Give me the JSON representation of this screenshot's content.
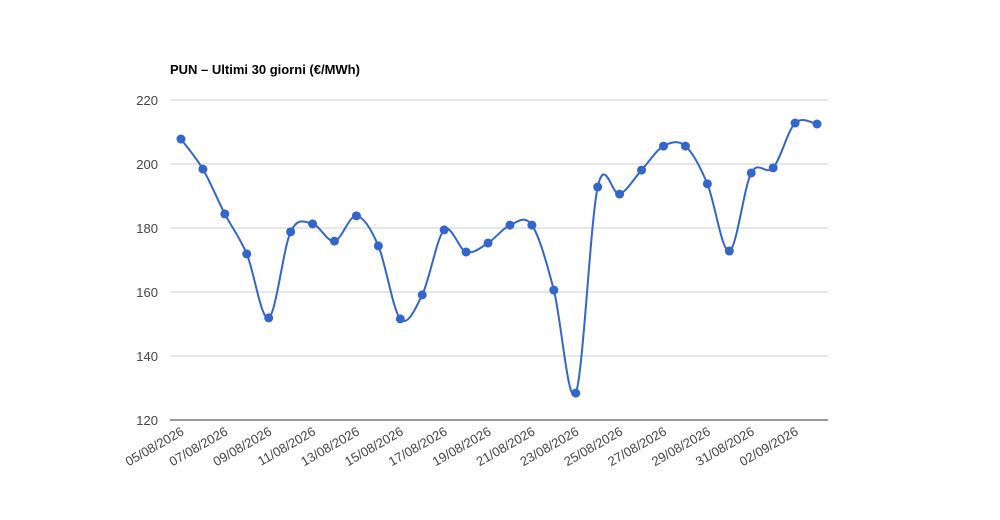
{
  "chart_data": {
    "type": "line",
    "title": "PUN – Ultimi 30 giorni (€/MWh)",
    "categories": [
      "05/08/2026",
      null,
      "07/08/2026",
      null,
      "09/08/2026",
      null,
      "11/08/2026",
      null,
      "13/08/2026",
      null,
      "15/08/2026",
      null,
      "17/08/2026",
      null,
      "19/08/2026",
      null,
      "21/08/2026",
      null,
      "23/08/2026",
      null,
      "25/08/2026",
      null,
      "27/08/2026",
      null,
      "29/08/2026",
      null,
      "31/08/2026",
      null,
      "02/09/2026",
      null
    ],
    "series": [
      {
        "color": "#3366cc",
        "values": [
          207.8,
          198.4,
          184.4,
          171.9,
          151.9,
          178.8,
          181.3,
          175.9,
          183.8,
          174.4,
          151.6,
          159.1,
          179.4,
          172.5,
          175.3,
          180.9,
          180.9,
          160.6,
          128.4,
          192.8,
          190.6,
          198.1,
          205.6,
          205.6,
          193.8,
          172.8,
          197.2,
          198.8,
          212.8,
          212.5
        ]
      }
    ],
    "ylim": [
      120,
      220
    ],
    "yticks": [
      120,
      140,
      160,
      180,
      200,
      220
    ],
    "grid": true,
    "smooth": true
  }
}
